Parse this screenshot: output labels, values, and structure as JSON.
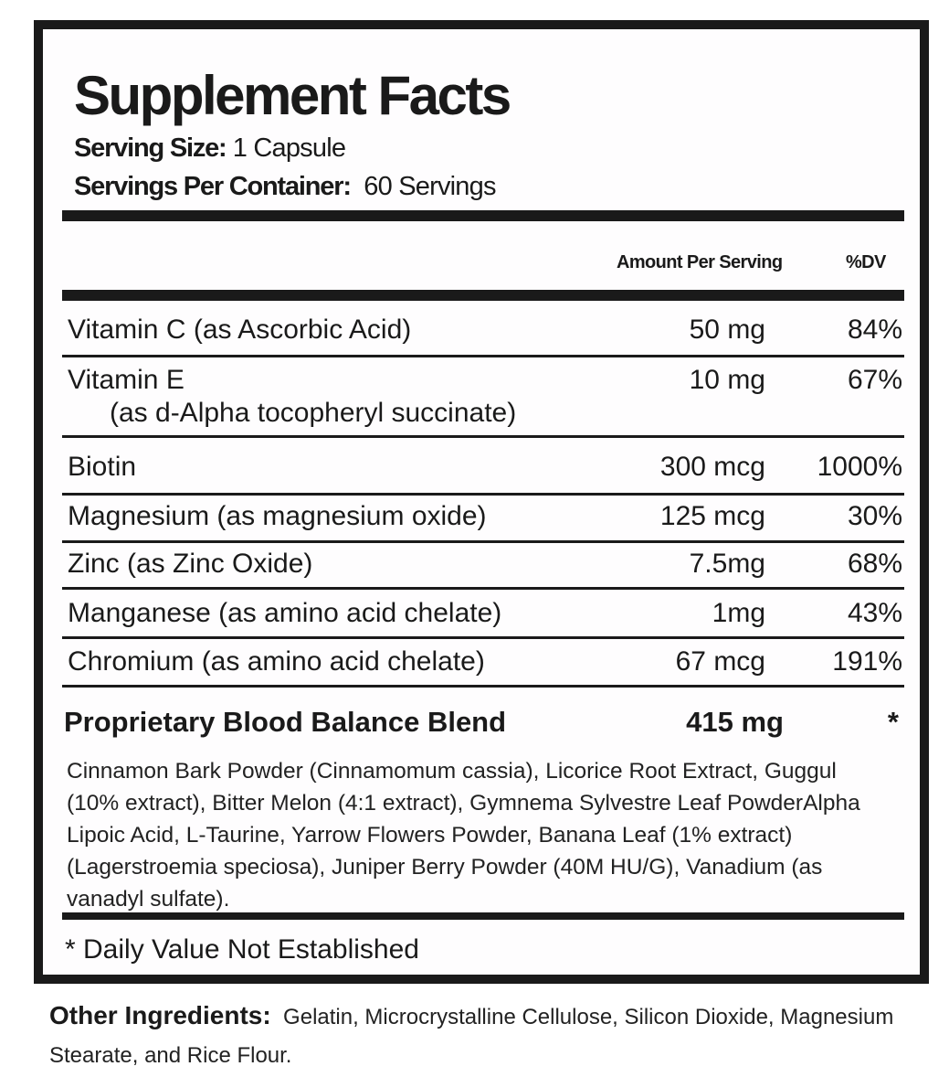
{
  "title": "Supplement Facts",
  "serving_size": {
    "label": "Serving Size:",
    "value": "1 Capsule"
  },
  "servings_per_container": {
    "label": "Servings Per Container:",
    "value": "60 Servings"
  },
  "columns": {
    "amount": "Amount Per Serving",
    "dv": "%DV"
  },
  "nutrients": [
    {
      "name": "Vitamin C (as Ascorbic Acid)",
      "amount": "50 mg",
      "dv": "84%"
    },
    {
      "name": "Vitamin E",
      "sub": "(as d-Alpha tocopheryl succinate)",
      "amount": "10 mg",
      "dv": "67%"
    },
    {
      "name": "Biotin",
      "amount": "300 mcg",
      "dv": "1000%"
    },
    {
      "name": "Magnesium (as magnesium oxide)",
      "amount": "125 mcg",
      "dv": "30%"
    },
    {
      "name": "Zinc (as Zinc Oxide)",
      "amount": "7.5mg",
      "dv": "68%"
    },
    {
      "name": "Manganese (as amino acid chelate)",
      "amount": "1mg",
      "dv": "43%"
    },
    {
      "name": "Chromium (as amino acid chelate)",
      "amount": "67 mcg",
      "dv": "191%"
    }
  ],
  "blend": {
    "name": "Proprietary Blood Balance Blend",
    "amount": "415 mg",
    "dv": "*",
    "ingredients": "Cinnamon Bark Powder (Cinnamomum cassia), Licorice Root Extract, Guggul (10% extract), Bitter Melon (4:1 extract), Gymnema Sylvestre Leaf PowderAlpha Lipoic Acid, L-Taurine, Yarrow Flowers Powder, Banana Leaf (1% extract) (Lagerstroemia speciosa), Juniper Berry Powder (40M HU/G), Vanadium (as vanadyl sulfate)."
  },
  "footnote": "* Daily Value Not Established",
  "other_ingredients": {
    "label": "Other Ingredients:",
    "value": "Gelatin, Microcrystalline Cellulose, Silicon Dioxide, Magnesium Stearate, and Rice Flour."
  }
}
